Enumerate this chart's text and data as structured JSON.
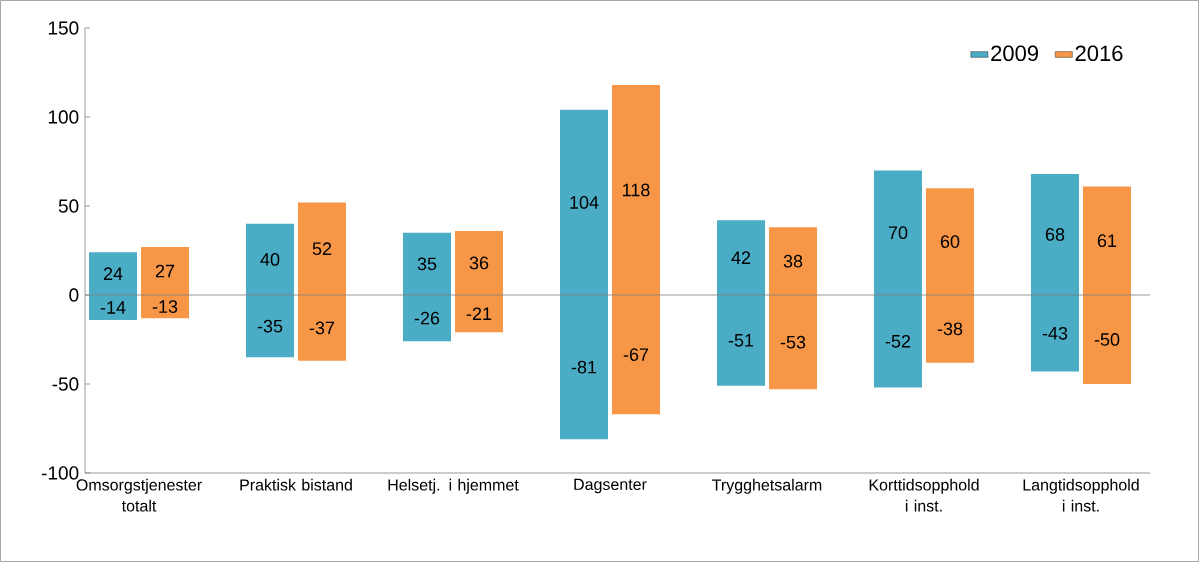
{
  "chart_data": {
    "type": "bar",
    "categories": [
      "Omsorgstjenester totalt",
      "Praktisk bistand",
      "Helsetj. i hjemmet",
      "Dagsenter",
      "Trygghetsalarm",
      "Korttidsopphold i inst.",
      "Langtidsopphold i inst."
    ],
    "series": [
      {
        "name": "2009",
        "color": "#4bacc6",
        "base": [
          -14,
          -35,
          -26,
          -81,
          -51,
          -52,
          -43
        ],
        "values": [
          38,
          75,
          61,
          185,
          93,
          122,
          111
        ]
      },
      {
        "name": "2016",
        "color": "#f79646",
        "base": [
          -13,
          -37,
          -21,
          -67,
          -53,
          -38,
          -50
        ],
        "values": [
          40,
          89,
          57,
          185,
          91,
          98,
          111
        ]
      }
    ],
    "annotations": [
      {
        "text": "24",
        "x": "Omsorgstjenester totalt",
        "y": 12
      },
      {
        "text": "-14",
        "x": "Omsorgstjenester totalt",
        "y": -7
      },
      {
        "text": "27",
        "x": "Omsorgstjenester totalt",
        "y": 13.5
      },
      {
        "text": "-13",
        "x": "Omsorgstjenester totalt",
        "y": -6.5
      },
      {
        "text": "40",
        "x": "Praktisk bistand",
        "y": 20
      },
      {
        "text": "-35",
        "x": "Praktisk bistand",
        "y": -17.5
      },
      {
        "text": "52",
        "x": "Praktisk bistand",
        "y": 26
      },
      {
        "text": "-37",
        "x": "Praktisk bistand",
        "y": -18.5
      },
      {
        "text": "35",
        "x": "Helsetj. i hjemmet",
        "y": 17.5
      },
      {
        "text": "-26",
        "x": "Helsetj. i hjemmet",
        "y": -13
      },
      {
        "text": "36",
        "x": "Helsetj. i hjemmet",
        "y": 18
      },
      {
        "text": "-21",
        "x": "Helsetj. i hjemmet",
        "y": -10.5
      },
      {
        "text": "104",
        "x": "Dagsenter",
        "y": 52
      },
      {
        "text": "-81",
        "x": "Dagsenter",
        "y": -40.5
      },
      {
        "text": "118",
        "x": "Dagsenter",
        "y": 59
      },
      {
        "text": "-67",
        "x": "Dagsenter",
        "y": -33.5
      },
      {
        "text": "42",
        "x": "Trygghetsalarm",
        "y": 21
      },
      {
        "text": "-51",
        "x": "Trygghetsalarm",
        "y": -25.5
      },
      {
        "text": "38",
        "x": "Trygghetsalarm",
        "y": 19
      },
      {
        "text": "-53",
        "x": "Trygghetsalarm",
        "y": -26.5
      },
      {
        "text": "70",
        "x": "Korttidsopphold i inst.",
        "y": 35
      },
      {
        "text": "-52",
        "x": "Korttidsopphold i inst.",
        "y": -26
      },
      {
        "text": "60",
        "x": "Korttidsopphold i inst.",
        "y": 30
      },
      {
        "text": "-38",
        "x": "Korttidsopphold i inst.",
        "y": -19
      },
      {
        "text": "68",
        "x": "Langtidsopphold i inst.",
        "y": 34
      },
      {
        "text": "-43",
        "x": "Langtidsopphold i inst.",
        "y": -21.5
      },
      {
        "text": "61",
        "x": "Langtidsopphold i inst.",
        "y": 30.5
      },
      {
        "text": "-50",
        "x": "Langtidsopphold i inst.",
        "y": -25
      }
    ],
    "ylim": [
      -100,
      150
    ],
    "yticks": [
      -100,
      -50,
      0,
      50,
      100,
      150
    ],
    "legend": "top right"
  }
}
